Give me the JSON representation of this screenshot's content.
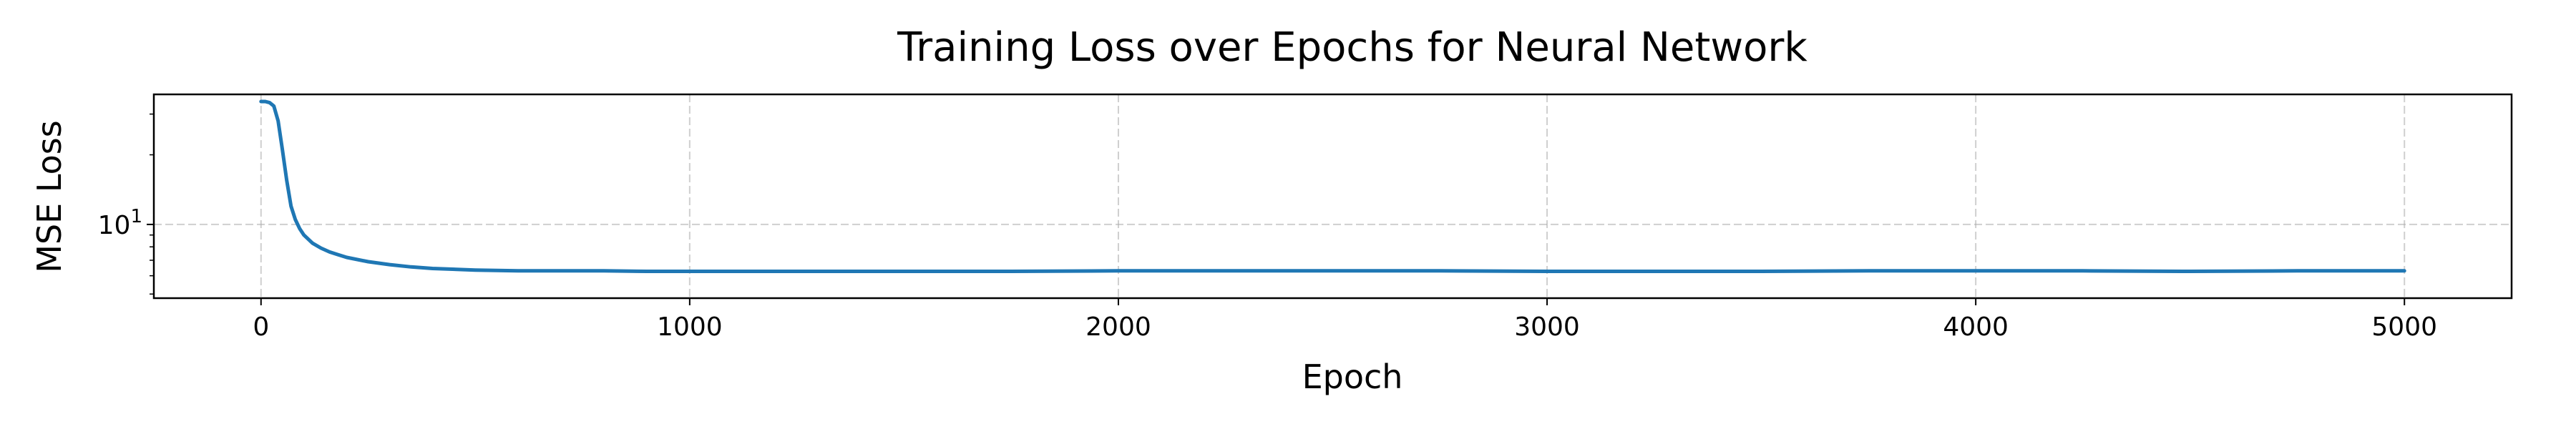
{
  "chart_data": {
    "type": "line",
    "title": "Training Loss over Epochs for Neural Network",
    "xlabel": "Epoch",
    "ylabel": "MSE Loss",
    "xlim": [
      -250,
      5250
    ],
    "ylim": [
      4.8,
      36.5
    ],
    "yscale": "log",
    "grid": true,
    "x_ticks": [
      0,
      1000,
      2000,
      3000,
      4000,
      5000
    ],
    "x_tick_labels": [
      "0",
      "1000",
      "2000",
      "3000",
      "4000",
      "5000"
    ],
    "y_major_ticks": [
      10
    ],
    "y_minor_ticks": [
      5,
      6,
      7,
      8,
      9,
      20,
      30
    ],
    "y_tick_labels": [
      {
        "base": "10",
        "exp": "1"
      }
    ],
    "line_color": "#1f77b4",
    "series": [
      {
        "x": [
          0,
          10,
          20,
          30,
          40,
          50,
          60,
          70,
          80,
          90,
          100,
          120,
          140,
          160,
          180,
          200,
          250,
          300,
          350,
          400,
          500,
          600,
          700,
          800,
          900,
          1000,
          1250,
          1500,
          1750,
          2000,
          2250,
          2500,
          2750,
          3000,
          3250,
          3500,
          3750,
          4000,
          4250,
          4500,
          4750,
          5000
        ],
        "y": [
          34.0,
          34.0,
          33.6,
          32.5,
          28.0,
          21.0,
          15.5,
          12.0,
          10.5,
          9.6,
          9.0,
          8.3,
          7.9,
          7.6,
          7.4,
          7.2,
          6.9,
          6.7,
          6.55,
          6.45,
          6.35,
          6.3,
          6.3,
          6.3,
          6.27,
          6.27,
          6.27,
          6.27,
          6.27,
          6.3,
          6.3,
          6.3,
          6.3,
          6.27,
          6.27,
          6.27,
          6.3,
          6.3,
          6.3,
          6.27,
          6.3,
          6.3
        ]
      }
    ]
  }
}
